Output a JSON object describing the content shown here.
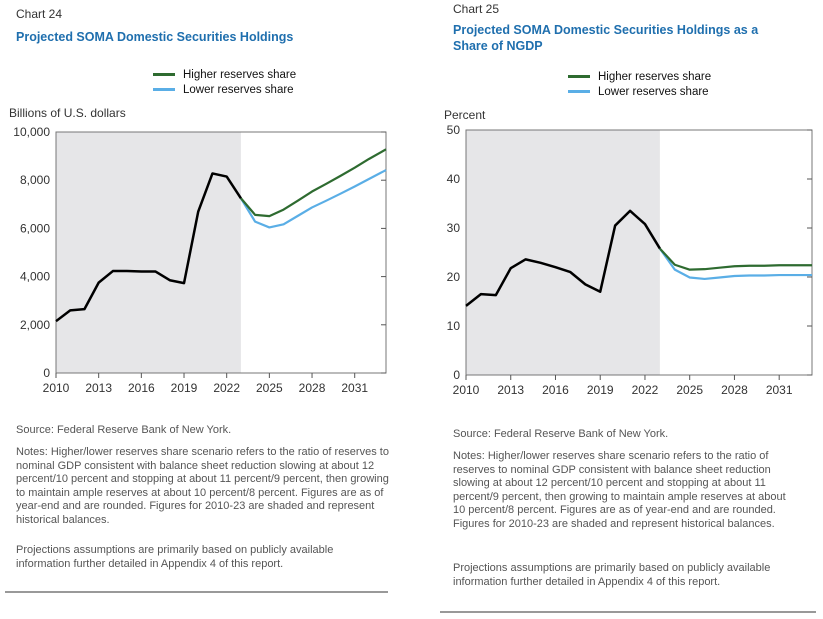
{
  "charts": [
    {
      "chart_label": "Chart 24",
      "title": "Projected SOMA Domestic Securities Holdings",
      "source": "Source: Federal Reserve Bank of New York.",
      "notes": "Notes: Higher/lower reserves share scenario refers to the ratio of reserves to nominal GDP consistent with balance sheet reduction slowing at about 12 percent/10 percent and stopping at about 11 percent/9 percent, then growing to maintain ample reserves at about 10 percent/8 percent. Figures are as of year-end and are rounded. Figures for 2010-23 are shaded and represent historical balances.",
      "projections": "Projections assumptions are primarily based on publicly available information further detailed in Appendix 4 of this report."
    },
    {
      "chart_label": "Chart 25",
      "title": "Projected SOMA Domestic Securities Holdings as a Share of NGDP",
      "source": "Source: Federal Reserve Bank of New York.",
      "notes": "Notes: Higher/lower reserves share scenario refers to the ratio of reserves to nominal GDP consistent with balance sheet reduction slowing at about 12 percent/10 percent and stopping at about 11 percent/9 percent, then growing to maintain ample reserves at about 10 percent/8 percent. Figures are as of year-end and are rounded. Figures for 2010-23 are shaded and represent historical balances.",
      "projections": "Projections assumptions are primarily based on publicly available information further detailed in Appendix 4 of this report."
    }
  ],
  "chart_data": [
    {
      "type": "line",
      "ylabel": "Billions of U.S. dollars",
      "xlim": [
        2010,
        2033.2
      ],
      "ylim": [
        0,
        10000
      ],
      "xticks": [
        2010,
        2013,
        2016,
        2019,
        2022,
        2025,
        2028,
        2031
      ],
      "yticks": [
        0,
        2000,
        4000,
        6000,
        8000,
        10000
      ],
      "ytick_labels": [
        "0",
        "2,000",
        "4,000",
        "6,000",
        "8,000",
        "10,000"
      ],
      "shaded_range": [
        2010,
        2023
      ],
      "legend_position": "top-center",
      "history": {
        "color": "#000000",
        "x": [
          2010,
          2011,
          2012,
          2013,
          2014,
          2015,
          2016,
          2017,
          2018,
          2019,
          2020,
          2021,
          2022,
          2023
        ],
        "values": [
          2150,
          2600,
          2650,
          3750,
          4230,
          4230,
          4210,
          4210,
          3850,
          3730,
          6700,
          8280,
          8150,
          7250
        ]
      },
      "series": [
        {
          "name": "Higher reserves share",
          "color": "#2e6b30",
          "x": [
            2023,
            2024,
            2025,
            2026,
            2027,
            2028,
            2029,
            2030,
            2031,
            2032,
            2033.2
          ],
          "values": [
            7250,
            6560,
            6510,
            6780,
            7150,
            7530,
            7850,
            8180,
            8520,
            8880,
            9280
          ]
        },
        {
          "name": "Lower reserves share",
          "color": "#5aaee6",
          "x": [
            2023,
            2024,
            2025,
            2026,
            2027,
            2028,
            2029,
            2030,
            2031,
            2032,
            2033.2
          ],
          "values": [
            7250,
            6280,
            6040,
            6170,
            6520,
            6870,
            7150,
            7440,
            7740,
            8050,
            8420
          ]
        }
      ]
    },
    {
      "type": "line",
      "ylabel": "Percent",
      "xlim": [
        2010,
        2033.2
      ],
      "ylim": [
        0,
        50
      ],
      "xticks": [
        2010,
        2013,
        2016,
        2019,
        2022,
        2025,
        2028,
        2031
      ],
      "yticks": [
        0,
        10,
        20,
        30,
        40,
        50
      ],
      "ytick_labels": [
        "0",
        "10",
        "20",
        "30",
        "40",
        "50"
      ],
      "shaded_range": [
        2010,
        2023
      ],
      "legend_position": "top-center",
      "history": {
        "color": "#000000",
        "x": [
          2010,
          2011,
          2012,
          2013,
          2014,
          2015,
          2016,
          2017,
          2018,
          2019,
          2020,
          2021,
          2022,
          2023
        ],
        "values": [
          14.1,
          16.5,
          16.3,
          21.8,
          23.6,
          22.9,
          22.0,
          21.0,
          18.5,
          17.0,
          30.5,
          33.5,
          30.8,
          25.8
        ]
      },
      "series": [
        {
          "name": "Higher reserves share",
          "color": "#2e6b30",
          "x": [
            2023,
            2024,
            2025,
            2026,
            2027,
            2028,
            2029,
            2030,
            2031,
            2032,
            2033.2
          ],
          "values": [
            25.8,
            22.5,
            21.5,
            21.6,
            21.9,
            22.2,
            22.3,
            22.3,
            22.4,
            22.4,
            22.4
          ]
        },
        {
          "name": "Lower reserves share",
          "color": "#5aaee6",
          "x": [
            2023,
            2024,
            2025,
            2026,
            2027,
            2028,
            2029,
            2030,
            2031,
            2032,
            2033.2
          ],
          "values": [
            25.8,
            21.5,
            19.9,
            19.6,
            19.9,
            20.2,
            20.3,
            20.3,
            20.4,
            20.4,
            20.4
          ]
        }
      ]
    }
  ]
}
